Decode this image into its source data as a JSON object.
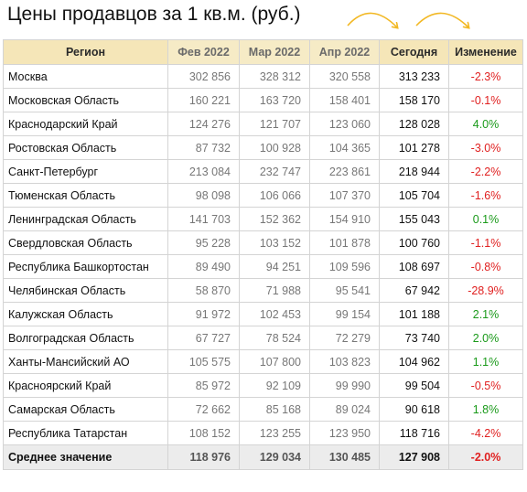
{
  "title": "Цены продавцов за 1 кв.м. (руб.)",
  "headers": [
    "Регион",
    "Фев 2022",
    "Мар 2022",
    "Апр 2022",
    "Сегодня",
    "Изменение"
  ],
  "rows": [
    {
      "region": "Москва",
      "feb": "302 856",
      "mar": "328 312",
      "apr": "320 558",
      "today": "313 233",
      "change": "-2.3%",
      "dir": "neg"
    },
    {
      "region": "Московская Область",
      "feb": "160 221",
      "mar": "163 720",
      "apr": "158 401",
      "today": "158 170",
      "change": "-0.1%",
      "dir": "neg"
    },
    {
      "region": "Краснодарский Край",
      "feb": "124 276",
      "mar": "121 707",
      "apr": "123 060",
      "today": "128 028",
      "change": "4.0%",
      "dir": "pos"
    },
    {
      "region": "Ростовская Область",
      "feb": "87 732",
      "mar": "100 928",
      "apr": "104 365",
      "today": "101 278",
      "change": "-3.0%",
      "dir": "neg"
    },
    {
      "region": "Санкт-Петербург",
      "feb": "213 084",
      "mar": "232 747",
      "apr": "223 861",
      "today": "218 944",
      "change": "-2.2%",
      "dir": "neg"
    },
    {
      "region": "Тюменская Область",
      "feb": "98 098",
      "mar": "106 066",
      "apr": "107 370",
      "today": "105 704",
      "change": "-1.6%",
      "dir": "neg"
    },
    {
      "region": "Ленинградская Область",
      "feb": "141 703",
      "mar": "152 362",
      "apr": "154 910",
      "today": "155 043",
      "change": "0.1%",
      "dir": "pos"
    },
    {
      "region": "Свердловская Область",
      "feb": "95 228",
      "mar": "103 152",
      "apr": "101 878",
      "today": "100 760",
      "change": "-1.1%",
      "dir": "neg"
    },
    {
      "region": "Республика Башкортостан",
      "feb": "89 490",
      "mar": "94 251",
      "apr": "109 596",
      "today": "108 697",
      "change": "-0.8%",
      "dir": "neg"
    },
    {
      "region": "Челябинская Область",
      "feb": "58 870",
      "mar": "71 988",
      "apr": "95 541",
      "today": "67 942",
      "change": "-28.9%",
      "dir": "neg"
    },
    {
      "region": "Калужская Область",
      "feb": "91 972",
      "mar": "102 453",
      "apr": "99 154",
      "today": "101 188",
      "change": "2.1%",
      "dir": "pos"
    },
    {
      "region": "Волгоградская Область",
      "feb": "67 727",
      "mar": "78 524",
      "apr": "72 279",
      "today": "73 740",
      "change": "2.0%",
      "dir": "pos"
    },
    {
      "region": "Ханты-Мансийский АО",
      "feb": "105 575",
      "mar": "107 800",
      "apr": "103 823",
      "today": "104 962",
      "change": "1.1%",
      "dir": "pos"
    },
    {
      "region": "Красноярский Край",
      "feb": "85 972",
      "mar": "92 109",
      "apr": "99 990",
      "today": "99 504",
      "change": "-0.5%",
      "dir": "neg"
    },
    {
      "region": "Самарская Область",
      "feb": "72 662",
      "mar": "85 168",
      "apr": "89 024",
      "today": "90 618",
      "change": "1.8%",
      "dir": "pos"
    },
    {
      "region": "Республика Татарстан",
      "feb": "108 152",
      "mar": "123 255",
      "apr": "123 950",
      "today": "118 716",
      "change": "-4.2%",
      "dir": "neg"
    }
  ],
  "footer": {
    "region": "Среднее значение",
    "feb": "118 976",
    "mar": "129 034",
    "apr": "130 485",
    "today": "127 908",
    "change": "-2.0%",
    "dir": "neg"
  },
  "colors": {
    "header_bg": "#f5e6b8",
    "footer_bg": "#ececec",
    "arrow": "#f2b824",
    "negative": "#e02020",
    "positive": "#1a9a1a"
  }
}
